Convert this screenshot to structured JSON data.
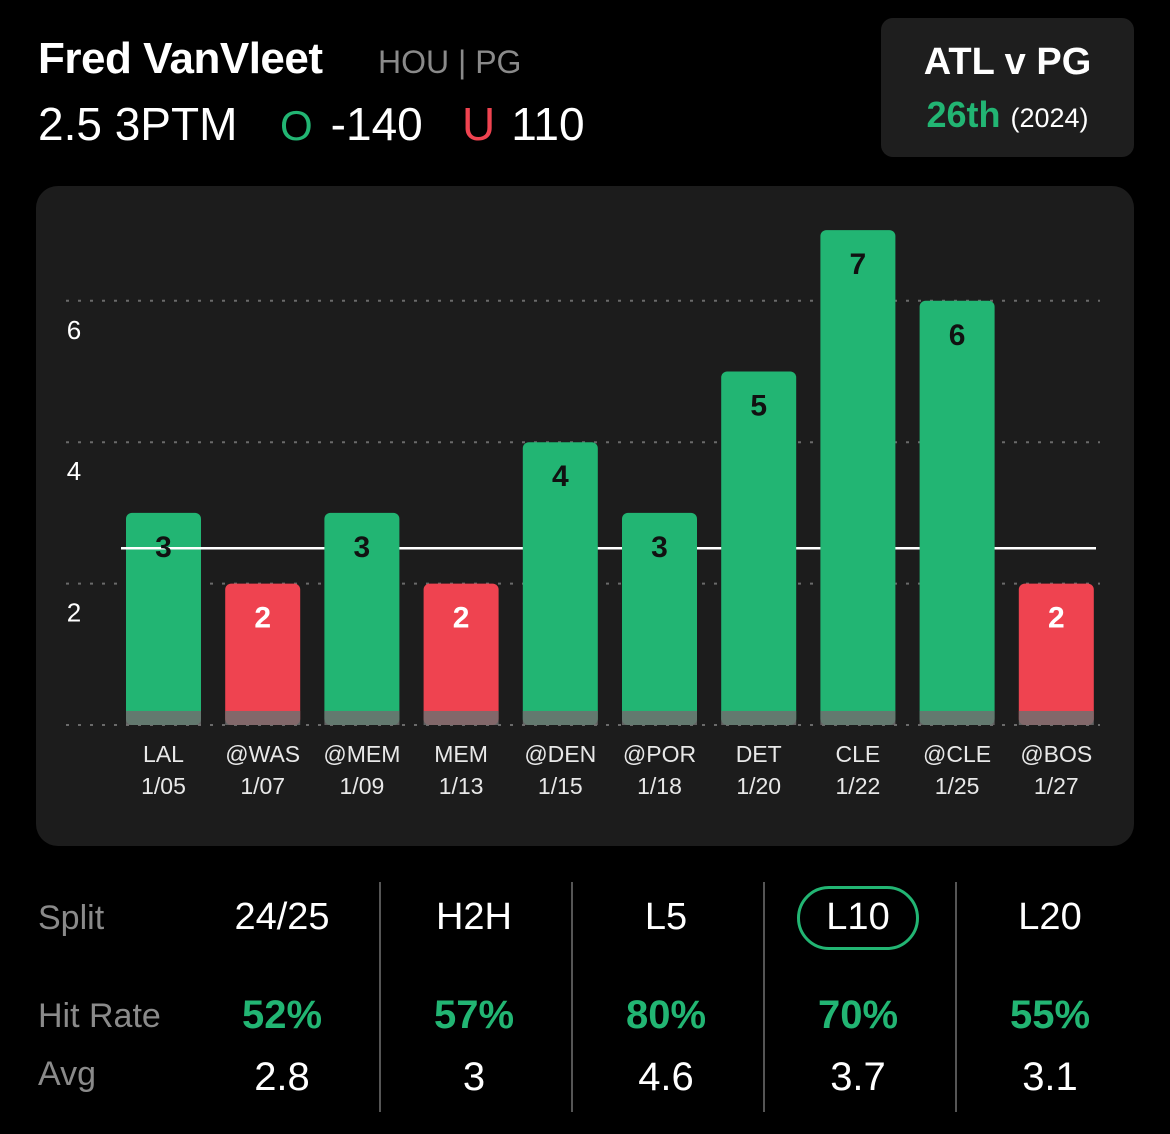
{
  "header": {
    "player_name": "Fred VanVleet",
    "team_pos": "HOU | PG",
    "prop_line": "2.5 3PTM",
    "over_marker": "O",
    "over_odds": "-140",
    "under_marker": "U",
    "under_odds": "110"
  },
  "matchup": {
    "title": "ATL v PG",
    "rank": "26th",
    "season": "(2024)"
  },
  "colors": {
    "hit": "#22b573",
    "miss": "#ef4350",
    "card": "#1c1c1c",
    "muted": "#8a8a8a"
  },
  "chart_data": {
    "type": "bar",
    "categories": [
      "LAL",
      "@WAS",
      "@MEM",
      "MEM",
      "@DEN",
      "@POR",
      "DET",
      "CLE",
      "@CLE",
      "@BOS"
    ],
    "dates": [
      "1/05",
      "1/07",
      "1/09",
      "1/13",
      "1/15",
      "1/18",
      "1/20",
      "1/22",
      "1/25",
      "1/27"
    ],
    "values": [
      3,
      2,
      3,
      2,
      4,
      3,
      5,
      7,
      6,
      2
    ],
    "data_labels": [
      "3",
      "2",
      "3",
      "2",
      "4",
      "3",
      "5",
      "7",
      "6",
      "2"
    ],
    "threshold": 2.5,
    "y_ticks": [
      2,
      4,
      6
    ],
    "y_tick_labels": [
      "2",
      "4",
      "6"
    ],
    "ylim": [
      0,
      7
    ],
    "grid": true
  },
  "splits": {
    "row_labels": {
      "split": "Split",
      "hit_rate": "Hit Rate",
      "avg": "Avg"
    },
    "columns": [
      {
        "label": "24/25",
        "hit_rate": "52%",
        "avg": "2.8",
        "selected": false
      },
      {
        "label": "H2H",
        "hit_rate": "57%",
        "avg": "3",
        "selected": false
      },
      {
        "label": "L5",
        "hit_rate": "80%",
        "avg": "4.6",
        "selected": false
      },
      {
        "label": "L10",
        "hit_rate": "70%",
        "avg": "3.7",
        "selected": true
      },
      {
        "label": "L20",
        "hit_rate": "55%",
        "avg": "3.1",
        "selected": false
      }
    ]
  }
}
